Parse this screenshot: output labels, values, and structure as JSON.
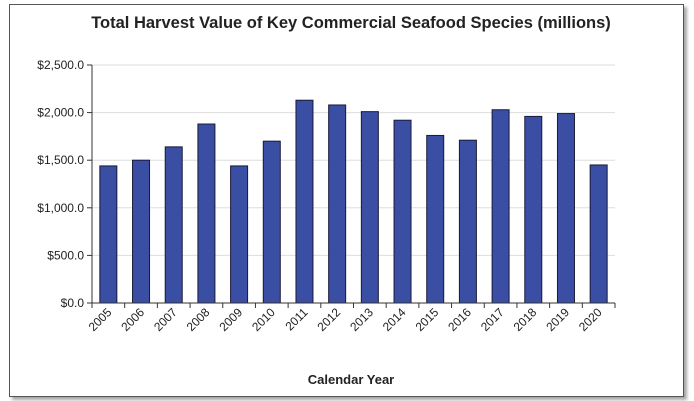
{
  "chart_data": {
    "type": "bar",
    "title": "Total Harvest Value of Key Commercial Seafood Species (millions)",
    "xlabel": "Calendar Year",
    "ylabel": "",
    "categories": [
      "2005",
      "2006",
      "2007",
      "2008",
      "2009",
      "2010",
      "2011",
      "2012",
      "2013",
      "2014",
      "2015",
      "2016",
      "2017",
      "2018",
      "2019",
      "2020"
    ],
    "values": [
      1440,
      1500,
      1640,
      1880,
      1440,
      1700,
      2130,
      2080,
      2010,
      1920,
      1760,
      1710,
      2030,
      1960,
      1990,
      1450
    ],
    "ylim": [
      0,
      2500
    ],
    "yticks": [
      0,
      500,
      1000,
      1500,
      2000,
      2500
    ],
    "ytick_labels": [
      "$0.0",
      "$500.0",
      "$1,000.0",
      "$1,500.0",
      "$2,000.0",
      "$2,500.0"
    ],
    "grid": true,
    "bar_color": "#3a4fa3",
    "bar_edge_color": "#1a1a3a"
  }
}
